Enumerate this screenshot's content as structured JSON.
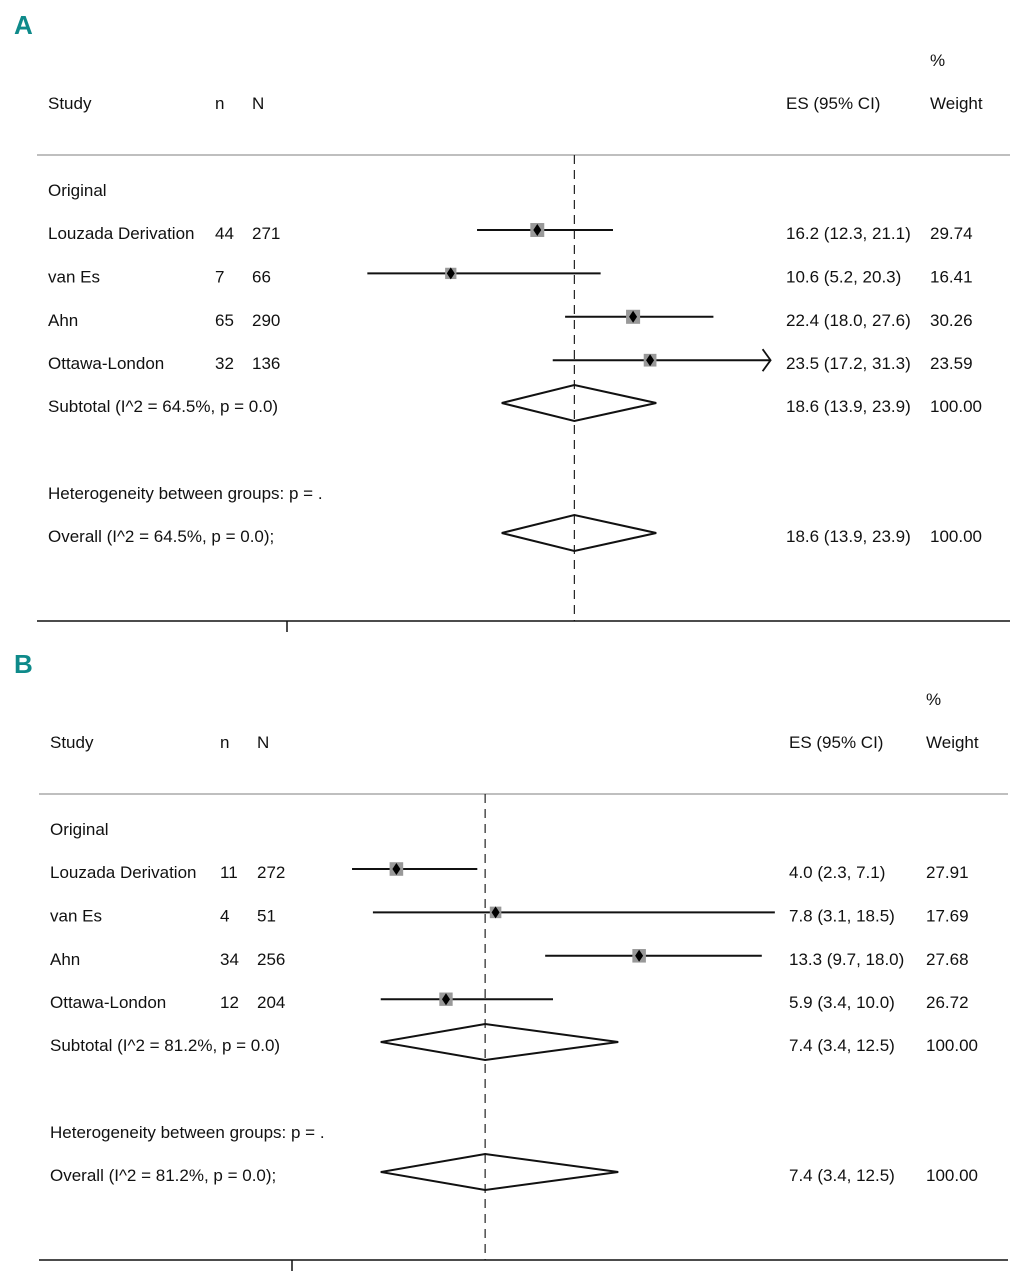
{
  "chart_data": [
    {
      "type": "forest",
      "panel_label": "A",
      "headers": {
        "study": "Study",
        "n": "n",
        "N": "N",
        "es": "ES (95% CI)",
        "weight_top": "%",
        "weight": "Weight"
      },
      "group_label": "Original",
      "studies": [
        {
          "name": "Louzada Derivation",
          "n": "44",
          "N": "271",
          "es": 16.2,
          "lo": 12.3,
          "hi": 21.1,
          "es_text": "16.2 (12.3, 21.1)",
          "weight": "29.74"
        },
        {
          "name": "van Es",
          "n": "7",
          "N": "66",
          "es": 10.6,
          "lo": 5.2,
          "hi": 20.3,
          "es_text": "10.6 (5.2, 20.3)",
          "weight": "16.41"
        },
        {
          "name": "Ahn",
          "n": "65",
          "N": "290",
          "es": 22.4,
          "lo": 18.0,
          "hi": 27.6,
          "es_text": "22.4 (18.0, 27.6)",
          "weight": "30.26"
        },
        {
          "name": "Ottawa-London",
          "n": "32",
          "N": "136",
          "es": 23.5,
          "lo": 17.2,
          "hi": 31.3,
          "es_text": "23.5 (17.2, 31.3)",
          "weight": "23.59",
          "arrow_right": true
        }
      ],
      "subtotal": {
        "label": "Subtotal  (I^2 = 64.5%, p = 0.0)",
        "es": 18.6,
        "lo": 13.9,
        "hi": 23.9,
        "es_text": "18.6 (13.9, 23.9)",
        "weight": "100.00"
      },
      "heterogeneity": "Heterogeneity between groups: p = .",
      "overall": {
        "label": "Overall  (I^2 = 64.5%, p = 0.0);",
        "es": 18.6,
        "lo": 13.9,
        "hi": 23.9,
        "es_text": "18.6 (13.9, 23.9)",
        "weight": "100.00"
      },
      "axis_tick": 0,
      "reference_line": 18.6
    },
    {
      "type": "forest",
      "panel_label": "B",
      "headers": {
        "study": "Study",
        "n": "n",
        "N": "N",
        "es": "ES (95% CI)",
        "weight_top": "%",
        "weight": "Weight"
      },
      "group_label": "Original",
      "studies": [
        {
          "name": "Louzada Derivation",
          "n": "11",
          "N": "272",
          "es": 4.0,
          "lo": 2.3,
          "hi": 7.1,
          "es_text": "4.0 (2.3, 7.1)",
          "weight": "27.91"
        },
        {
          "name": "van Es",
          "n": "4",
          "N": "51",
          "es": 7.8,
          "lo": 3.1,
          "hi": 18.5,
          "es_text": "7.8 (3.1, 18.5)",
          "weight": "17.69"
        },
        {
          "name": "Ahn",
          "n": "34",
          "N": "256",
          "es": 13.3,
          "lo": 9.7,
          "hi": 18.0,
          "es_text": "13.3 (9.7, 18.0)",
          "weight": "27.68"
        },
        {
          "name": "Ottawa-London",
          "n": "12",
          "N": "204",
          "es": 5.9,
          "lo": 3.4,
          "hi": 10.0,
          "es_text": "5.9 (3.4, 10.0)",
          "weight": "26.72"
        }
      ],
      "subtotal": {
        "label": "Subtotal  (I^2 = 81.2%, p = 0.0)",
        "es": 7.4,
        "lo": 3.4,
        "hi": 12.5,
        "es_text": "7.4 (3.4, 12.5)",
        "weight": "100.00"
      },
      "heterogeneity": "Heterogeneity between groups: p = .",
      "overall": {
        "label": "Overall  (I^2 = 81.2%, p = 0.0);",
        "es": 7.4,
        "lo": 3.4,
        "hi": 12.5,
        "es_text": "7.4 (3.4, 12.5)",
        "weight": "100.00"
      },
      "axis_tick": 0,
      "reference_line": 7.4
    }
  ]
}
